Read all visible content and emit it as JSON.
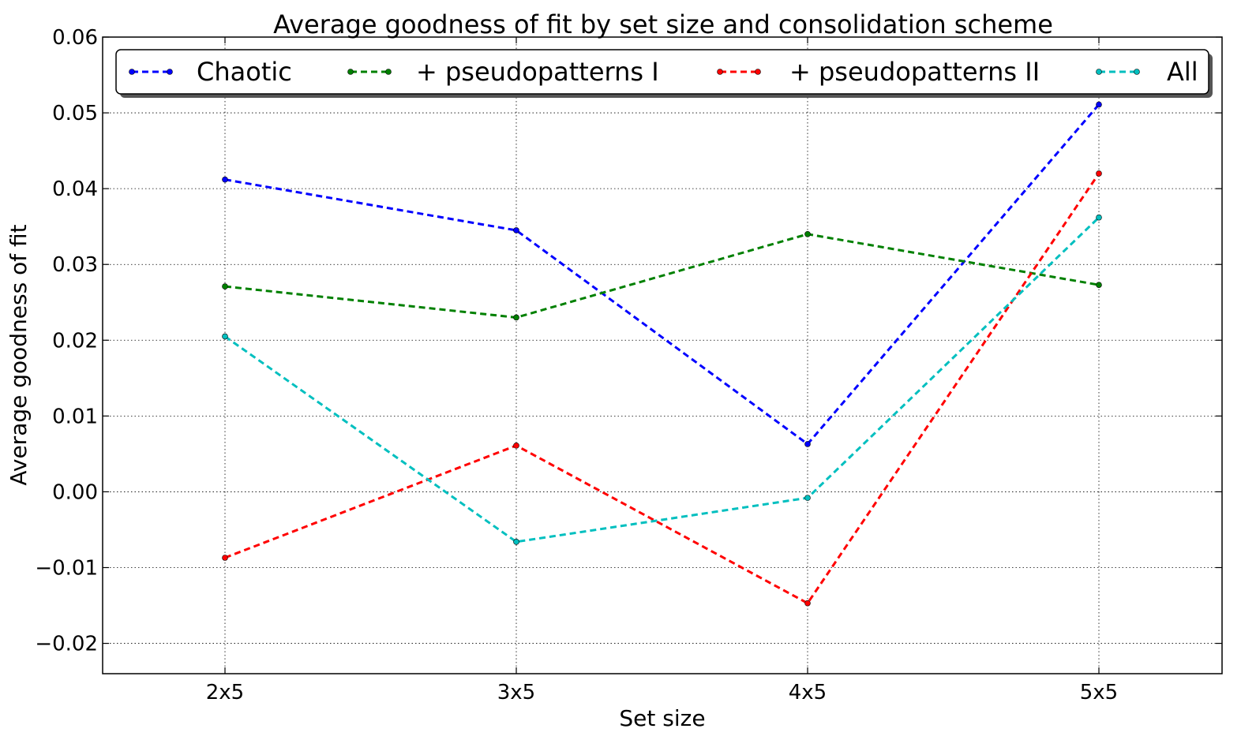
{
  "chart_data": {
    "type": "line",
    "title": "Average goodness of fit by set size and consolidation scheme",
    "xlabel": "Set size",
    "ylabel": "Average goodness of fit",
    "categories": [
      "2x5",
      "3x5",
      "4x5",
      "5x5"
    ],
    "ylim": [
      -0.024,
      0.06
    ],
    "yticks": [
      -0.02,
      -0.01,
      0.0,
      0.01,
      0.02,
      0.03,
      0.04,
      0.05,
      0.06
    ],
    "ytick_labels": [
      "−0.02",
      "−0.01",
      "0.00",
      "0.01",
      "0.02",
      "0.03",
      "0.04",
      "0.05",
      "0.06"
    ],
    "grid": true,
    "legend_position": "top",
    "series": [
      {
        "name": "Chaotic",
        "color": "#0000ff",
        "values": [
          0.0412,
          0.0345,
          0.0063,
          0.0511
        ]
      },
      {
        "name": "+ pseudopatterns I",
        "color": "#008000",
        "values": [
          0.0271,
          0.023,
          0.034,
          0.0273
        ]
      },
      {
        "name": "+ pseudopatterns II",
        "color": "#ff0000",
        "values": [
          -0.0087,
          0.0061,
          -0.0147,
          0.042
        ]
      },
      {
        "name": "All",
        "color": "#00bfbf",
        "values": [
          0.0205,
          -0.0066,
          -0.0008,
          0.0362
        ]
      }
    ]
  }
}
